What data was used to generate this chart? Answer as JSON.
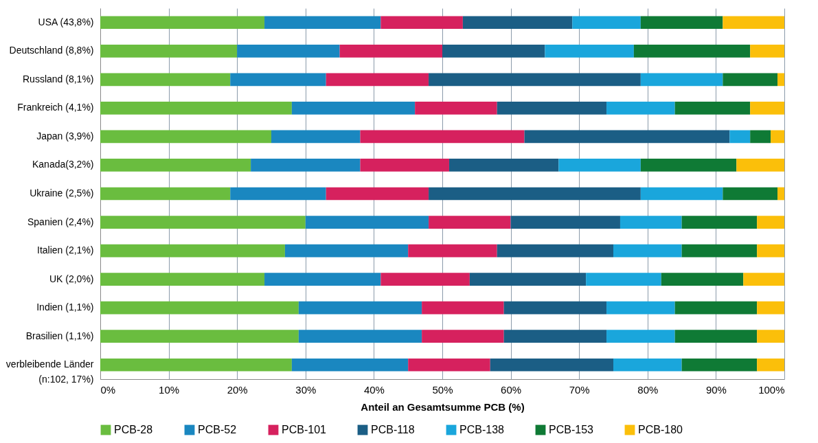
{
  "chart_data": {
    "type": "bar",
    "orientation": "horizontal",
    "stacked": true,
    "xlabel": "Anteil an Gesamtsumme PCB (%)",
    "categories": [
      "USA (43,8%)",
      "Deutschland (8,8%)",
      "Russland (8,1%)",
      "Frankreich (4,1%)",
      "Japan (3,9%)",
      "Kanada(3,2%)",
      "Ukraine (2,5%)",
      "Spanien (2,4%)",
      "Italien (2,1%)",
      "UK (2,0%)",
      "Indien (1,1%)",
      "Brasilien (1,1%)",
      "verbleibende Länder\n(n:102, 17%)"
    ],
    "series": [
      {
        "name": "PCB-28",
        "color": "#6abd3f",
        "values": [
          24,
          20,
          19,
          28,
          25,
          22,
          19,
          30,
          27,
          24,
          29,
          29,
          28
        ]
      },
      {
        "name": "PCB-52",
        "color": "#1a87c0",
        "values": [
          17,
          15,
          14,
          18,
          13,
          16,
          14,
          18,
          18,
          17,
          18,
          18,
          17
        ]
      },
      {
        "name": "PCB-101",
        "color": "#d6215e",
        "values": [
          12,
          15,
          15,
          12,
          24,
          13,
          15,
          12,
          13,
          13,
          12,
          12,
          12
        ]
      },
      {
        "name": "PCB-118",
        "color": "#1b5e85",
        "values": [
          16,
          15,
          31,
          16,
          30,
          16,
          31,
          16,
          17,
          17,
          15,
          15,
          18
        ]
      },
      {
        "name": "PCB-138",
        "color": "#1aa6dc",
        "values": [
          10,
          13,
          12,
          10,
          3,
          12,
          12,
          9,
          10,
          11,
          10,
          10,
          10
        ]
      },
      {
        "name": "PCB-153",
        "color": "#0f7a35",
        "values": [
          12,
          17,
          8,
          11,
          3,
          14,
          8,
          11,
          11,
          12,
          12,
          12,
          11
        ]
      },
      {
        "name": "PCB-180",
        "color": "#fbbf0a",
        "values": [
          9,
          5,
          1,
          5,
          2,
          7,
          1,
          4,
          4,
          6,
          4,
          4,
          4
        ]
      }
    ],
    "xlim": [
      0,
      100
    ],
    "xticks": [
      {
        "value": 0,
        "label": "0%"
      },
      {
        "value": 10,
        "label": "10%"
      },
      {
        "value": 20,
        "label": "20%"
      },
      {
        "value": 30,
        "label": "30%"
      },
      {
        "value": 40,
        "label": "40%"
      },
      {
        "value": 50,
        "label": "50%"
      },
      {
        "value": 60,
        "label": "60%"
      },
      {
        "value": 70,
        "label": "70%"
      },
      {
        "value": 80,
        "label": "80%"
      },
      {
        "value": 90,
        "label": "90%"
      },
      {
        "value": 100,
        "label": "100%"
      }
    ],
    "grid": "x",
    "legend": "bottom"
  }
}
